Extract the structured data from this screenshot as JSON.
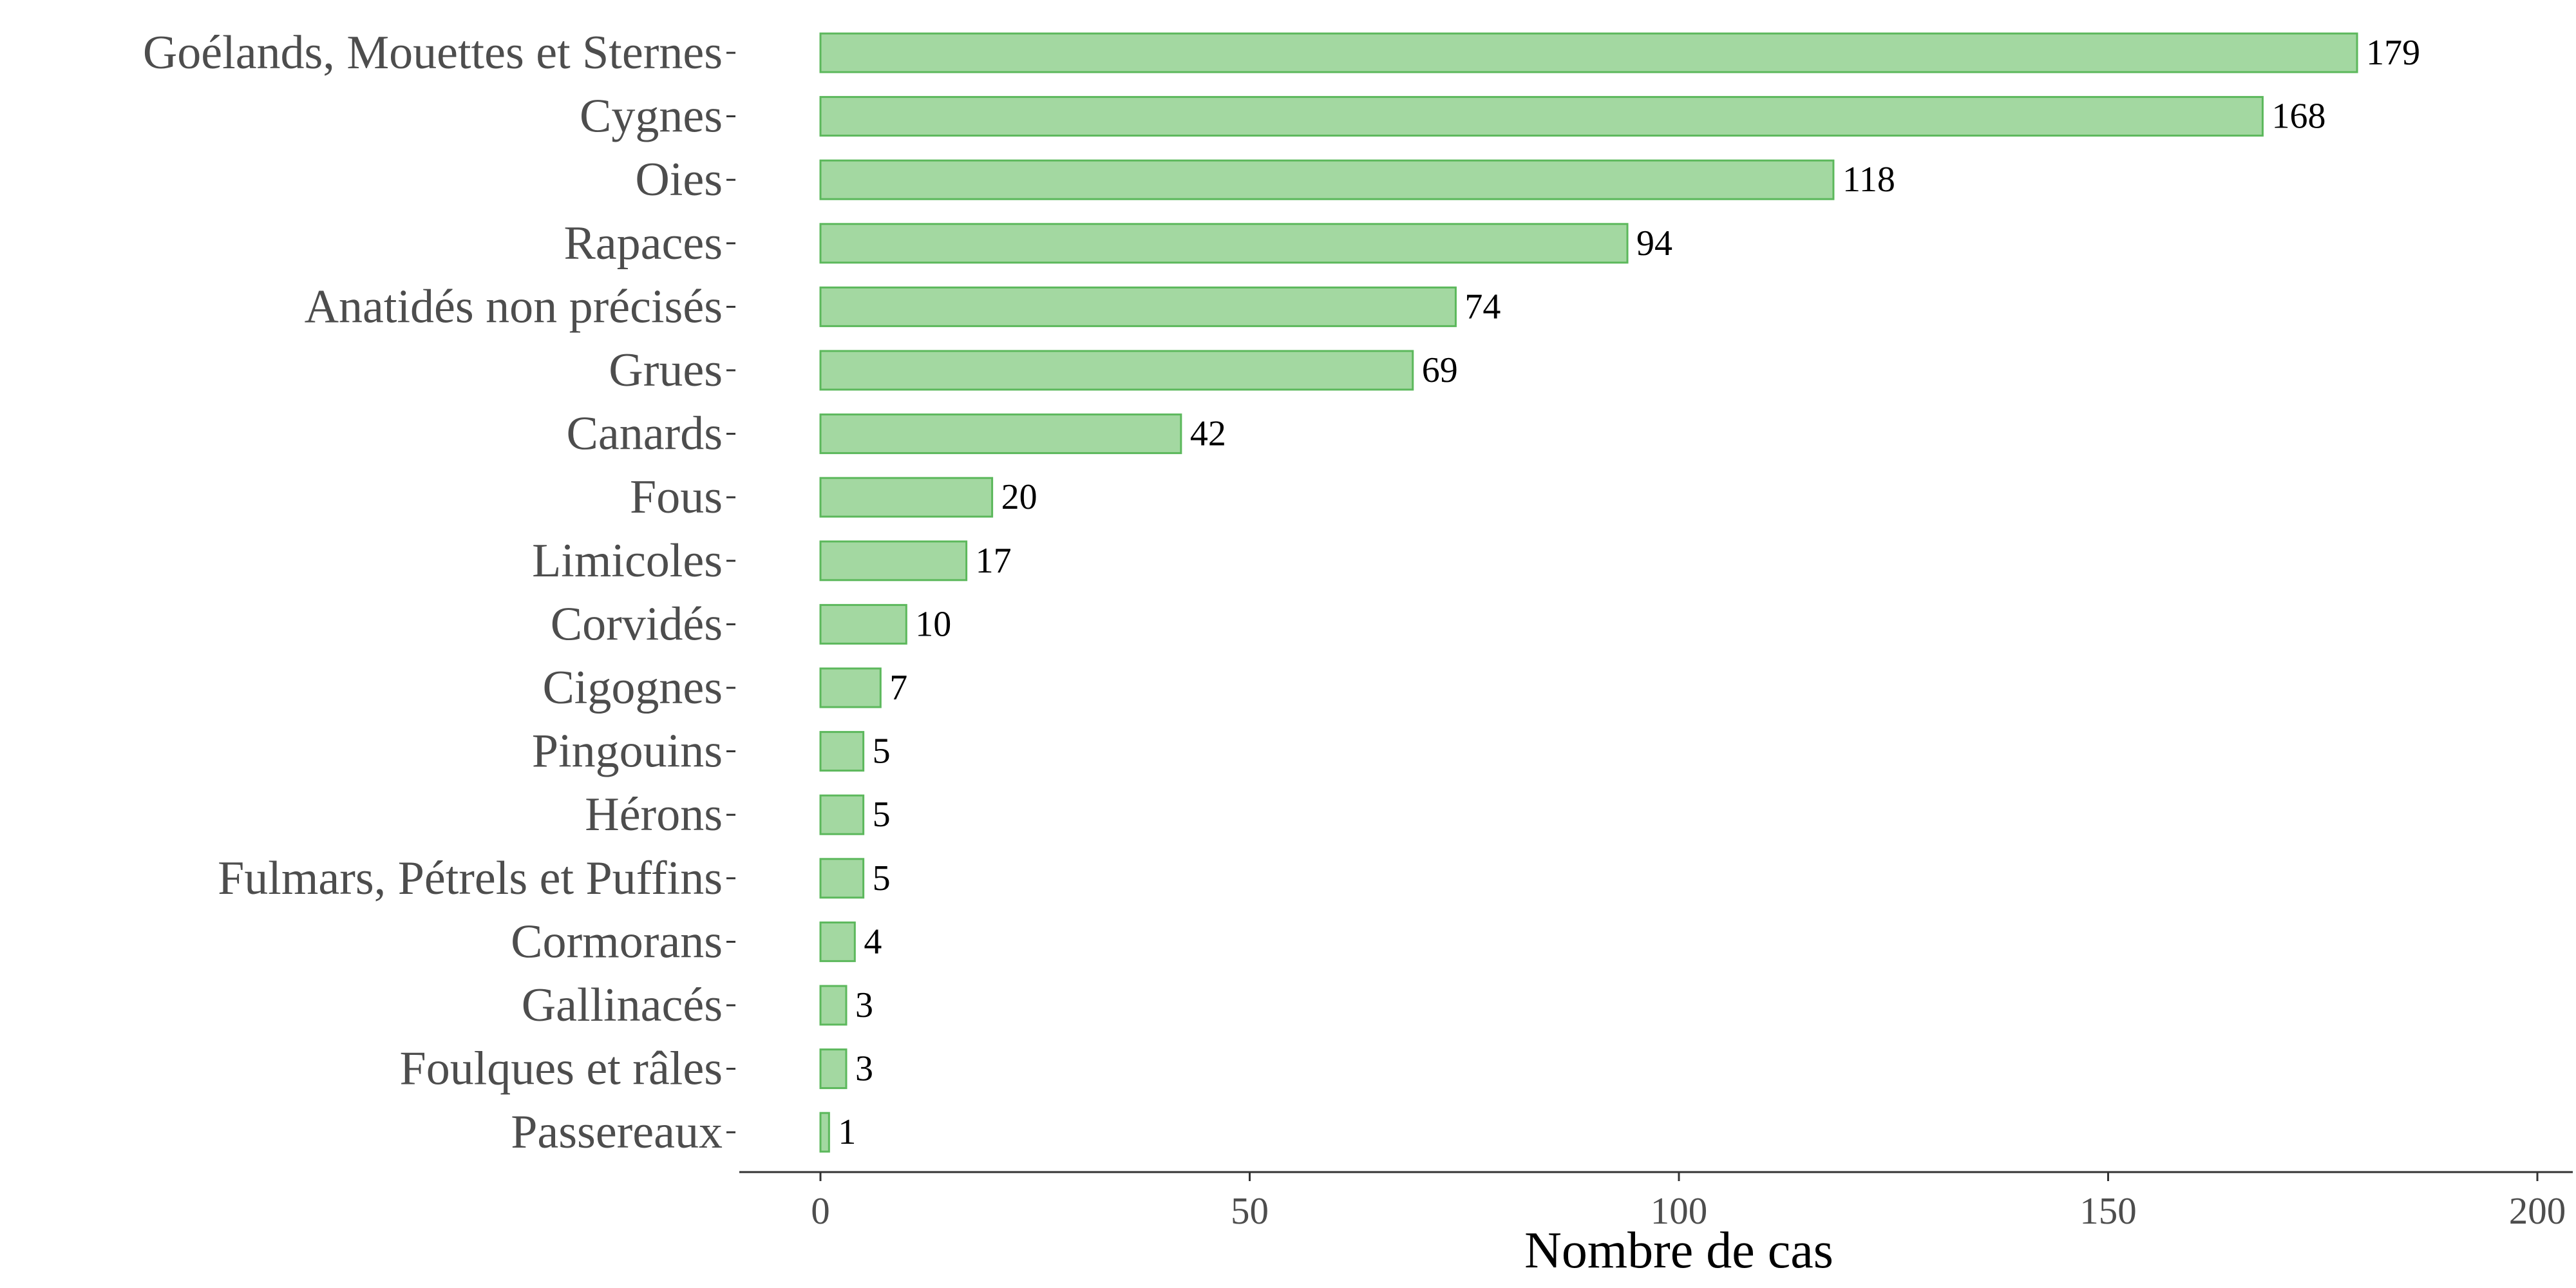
{
  "chart_data": {
    "type": "bar",
    "orientation": "horizontal",
    "title": "",
    "xlabel": "Nombre de cas",
    "ylabel": "",
    "xlim": [
      0,
      200
    ],
    "x_ticks": [
      0,
      50,
      100,
      150,
      200
    ],
    "grid": false,
    "legend": "none",
    "bar_fill_color": "#a3d8a1",
    "bar_edge_color": "#5cb85c",
    "categories": [
      "Goélands, Mouettes et Sternes",
      "Cygnes",
      "Oies",
      "Rapaces",
      "Anatidés non précisés",
      "Grues",
      "Canards",
      "Fous",
      "Limicoles",
      "Corvidés",
      "Cigognes",
      "Pingouins",
      "Hérons",
      "Fulmars, Pétrels et Puffins",
      "Cormorans",
      "Gallinacés",
      "Foulques et râles",
      "Passereaux"
    ],
    "values": [
      179,
      168,
      118,
      94,
      74,
      69,
      42,
      20,
      17,
      10,
      7,
      5,
      5,
      5,
      4,
      3,
      3,
      1
    ]
  }
}
